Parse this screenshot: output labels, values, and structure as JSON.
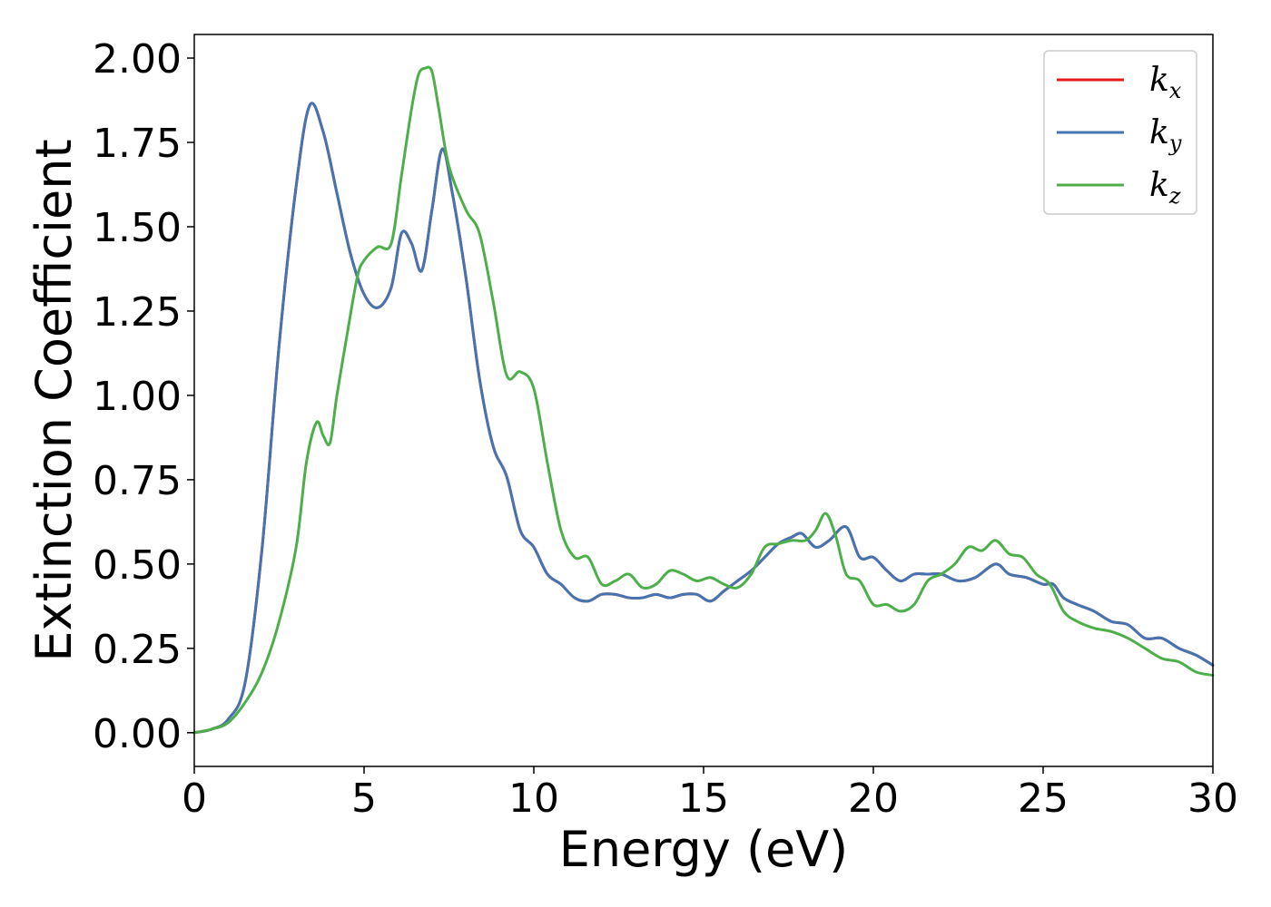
{
  "chart_data": {
    "type": "line",
    "title": "",
    "xlabel": "Energy (eV)",
    "ylabel": "Extinction Coefficient",
    "xlim": [
      0,
      30
    ],
    "ylim": [
      -0.1,
      2.07
    ],
    "xticks": [
      0,
      5,
      10,
      15,
      20,
      25,
      30
    ],
    "xtick_labels": [
      "0",
      "5",
      "10",
      "15",
      "20",
      "25",
      "30"
    ],
    "yticks": [
      0.0,
      0.25,
      0.5,
      0.75,
      1.0,
      1.25,
      1.5,
      1.75,
      2.0
    ],
    "ytick_labels": [
      "0.00",
      "0.25",
      "0.50",
      "0.75",
      "1.00",
      "1.25",
      "1.50",
      "1.75",
      "2.00"
    ],
    "grid": false,
    "legend_position": "top-right",
    "series": [
      {
        "name": "k",
        "subscript": "x",
        "color": "#e41a1c",
        "x": [
          0,
          0.5,
          1.0,
          1.5,
          2.0,
          2.5,
          3.0,
          3.4,
          3.8,
          4.2,
          4.6,
          5.0,
          5.4,
          5.8,
          6.1,
          6.4,
          6.7,
          7.0,
          7.3,
          7.6,
          8.0,
          8.4,
          8.8,
          9.2,
          9.6,
          10.0,
          10.4,
          10.8,
          11.2,
          11.6,
          12.0,
          12.4,
          12.8,
          13.2,
          13.6,
          14.0,
          14.4,
          14.8,
          15.2,
          15.6,
          16.0,
          16.4,
          16.8,
          17.2,
          17.6,
          17.9,
          18.3,
          18.7,
          19.2,
          19.6,
          20.0,
          20.4,
          20.8,
          21.2,
          21.6,
          22.0,
          22.5,
          23.0,
          23.6,
          24.0,
          24.5,
          25.0,
          25.3,
          25.6,
          26.0,
          26.5,
          27.0,
          27.5,
          28.0,
          28.5,
          29.0,
          29.5,
          30.0
        ],
        "y": [
          0.0,
          0.01,
          0.04,
          0.15,
          0.55,
          1.15,
          1.62,
          1.86,
          1.78,
          1.6,
          1.42,
          1.3,
          1.26,
          1.32,
          1.48,
          1.45,
          1.37,
          1.55,
          1.73,
          1.6,
          1.35,
          1.05,
          0.85,
          0.76,
          0.6,
          0.55,
          0.47,
          0.44,
          0.4,
          0.39,
          0.41,
          0.41,
          0.4,
          0.4,
          0.41,
          0.4,
          0.41,
          0.41,
          0.39,
          0.42,
          0.45,
          0.48,
          0.52,
          0.56,
          0.58,
          0.59,
          0.55,
          0.57,
          0.61,
          0.52,
          0.52,
          0.48,
          0.45,
          0.47,
          0.47,
          0.47,
          0.45,
          0.46,
          0.5,
          0.47,
          0.46,
          0.44,
          0.44,
          0.4,
          0.38,
          0.36,
          0.33,
          0.32,
          0.28,
          0.28,
          0.25,
          0.23,
          0.2
        ]
      },
      {
        "name": "k",
        "subscript": "y",
        "color": "#4575b0",
        "x": [
          0,
          0.5,
          1.0,
          1.5,
          2.0,
          2.5,
          3.0,
          3.4,
          3.8,
          4.2,
          4.6,
          5.0,
          5.4,
          5.8,
          6.1,
          6.4,
          6.7,
          7.0,
          7.3,
          7.6,
          8.0,
          8.4,
          8.8,
          9.2,
          9.6,
          10.0,
          10.4,
          10.8,
          11.2,
          11.6,
          12.0,
          12.4,
          12.8,
          13.2,
          13.6,
          14.0,
          14.4,
          14.8,
          15.2,
          15.6,
          16.0,
          16.4,
          16.8,
          17.2,
          17.6,
          17.9,
          18.3,
          18.7,
          19.2,
          19.6,
          20.0,
          20.4,
          20.8,
          21.2,
          21.6,
          22.0,
          22.5,
          23.0,
          23.6,
          24.0,
          24.5,
          25.0,
          25.3,
          25.6,
          26.0,
          26.5,
          27.0,
          27.5,
          28.0,
          28.5,
          29.0,
          29.5,
          30.0
        ],
        "y": [
          0.0,
          0.01,
          0.04,
          0.15,
          0.55,
          1.15,
          1.62,
          1.86,
          1.78,
          1.6,
          1.42,
          1.3,
          1.26,
          1.32,
          1.48,
          1.45,
          1.37,
          1.55,
          1.73,
          1.6,
          1.35,
          1.05,
          0.85,
          0.76,
          0.6,
          0.55,
          0.47,
          0.44,
          0.4,
          0.39,
          0.41,
          0.41,
          0.4,
          0.4,
          0.41,
          0.4,
          0.41,
          0.41,
          0.39,
          0.42,
          0.45,
          0.48,
          0.52,
          0.56,
          0.58,
          0.59,
          0.55,
          0.57,
          0.61,
          0.52,
          0.52,
          0.48,
          0.45,
          0.47,
          0.47,
          0.47,
          0.45,
          0.46,
          0.5,
          0.47,
          0.46,
          0.44,
          0.44,
          0.4,
          0.38,
          0.36,
          0.33,
          0.32,
          0.28,
          0.28,
          0.25,
          0.23,
          0.2
        ]
      },
      {
        "name": "k",
        "subscript": "z",
        "color": "#4daf4a",
        "x": [
          0,
          0.5,
          1.0,
          1.5,
          2.0,
          2.5,
          3.0,
          3.3,
          3.6,
          3.8,
          4.0,
          4.2,
          4.5,
          4.8,
          5.0,
          5.4,
          5.8,
          6.1,
          6.4,
          6.6,
          6.8,
          7.0,
          7.2,
          7.5,
          8.0,
          8.4,
          8.8,
          9.2,
          9.6,
          10.0,
          10.4,
          10.8,
          11.2,
          11.6,
          12.0,
          12.4,
          12.8,
          13.2,
          13.6,
          14.0,
          14.4,
          14.8,
          15.2,
          15.6,
          16.0,
          16.4,
          16.8,
          17.2,
          17.6,
          18.0,
          18.3,
          18.6,
          18.9,
          19.2,
          19.6,
          20.0,
          20.4,
          20.8,
          21.2,
          21.6,
          22.0,
          22.4,
          22.8,
          23.2,
          23.6,
          24.0,
          24.4,
          24.8,
          25.2,
          25.6,
          26.0,
          26.5,
          27.0,
          27.5,
          28.0,
          28.5,
          29.0,
          29.5,
          30.0
        ],
        "y": [
          0.0,
          0.01,
          0.03,
          0.09,
          0.18,
          0.33,
          0.55,
          0.8,
          0.92,
          0.88,
          0.86,
          1.0,
          1.18,
          1.35,
          1.4,
          1.44,
          1.45,
          1.65,
          1.85,
          1.95,
          1.97,
          1.96,
          1.85,
          1.68,
          1.55,
          1.48,
          1.28,
          1.06,
          1.07,
          1.02,
          0.8,
          0.6,
          0.52,
          0.52,
          0.44,
          0.45,
          0.47,
          0.43,
          0.44,
          0.48,
          0.47,
          0.45,
          0.46,
          0.44,
          0.43,
          0.47,
          0.55,
          0.56,
          0.57,
          0.57,
          0.6,
          0.65,
          0.58,
          0.47,
          0.45,
          0.38,
          0.38,
          0.36,
          0.38,
          0.45,
          0.47,
          0.5,
          0.55,
          0.54,
          0.57,
          0.53,
          0.52,
          0.47,
          0.44,
          0.36,
          0.33,
          0.31,
          0.3,
          0.28,
          0.25,
          0.22,
          0.21,
          0.18,
          0.17
        ]
      }
    ]
  }
}
